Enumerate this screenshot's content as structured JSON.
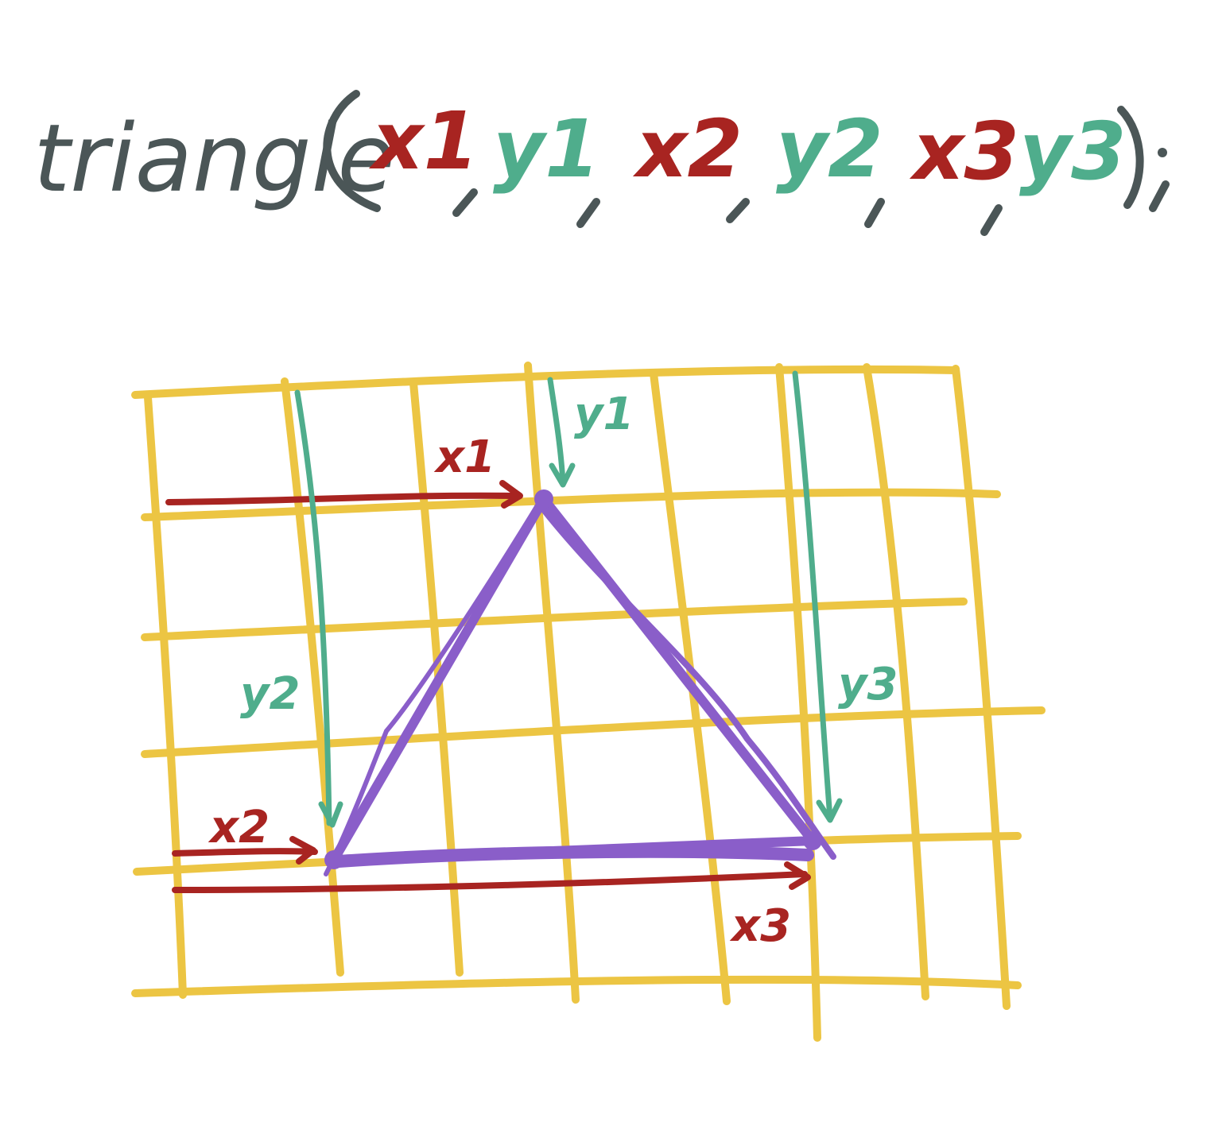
{
  "code": {
    "function_name": "triangle",
    "open_paren": "(",
    "args": [
      "x1",
      "y1",
      "x2",
      "y2",
      "x3",
      "y3"
    ],
    "separator": ",",
    "close": ");"
  },
  "diagram_labels": {
    "x1": "x1",
    "y1": "y1",
    "x2": "x2",
    "y2": "y2",
    "x3": "x3",
    "y3": "y3"
  },
  "colors": {
    "ink": "#4b5657",
    "x_color": "#a82421",
    "y_color": "#4fad8c",
    "grid": "#ecc543",
    "triangle": "#8a5ec9"
  }
}
